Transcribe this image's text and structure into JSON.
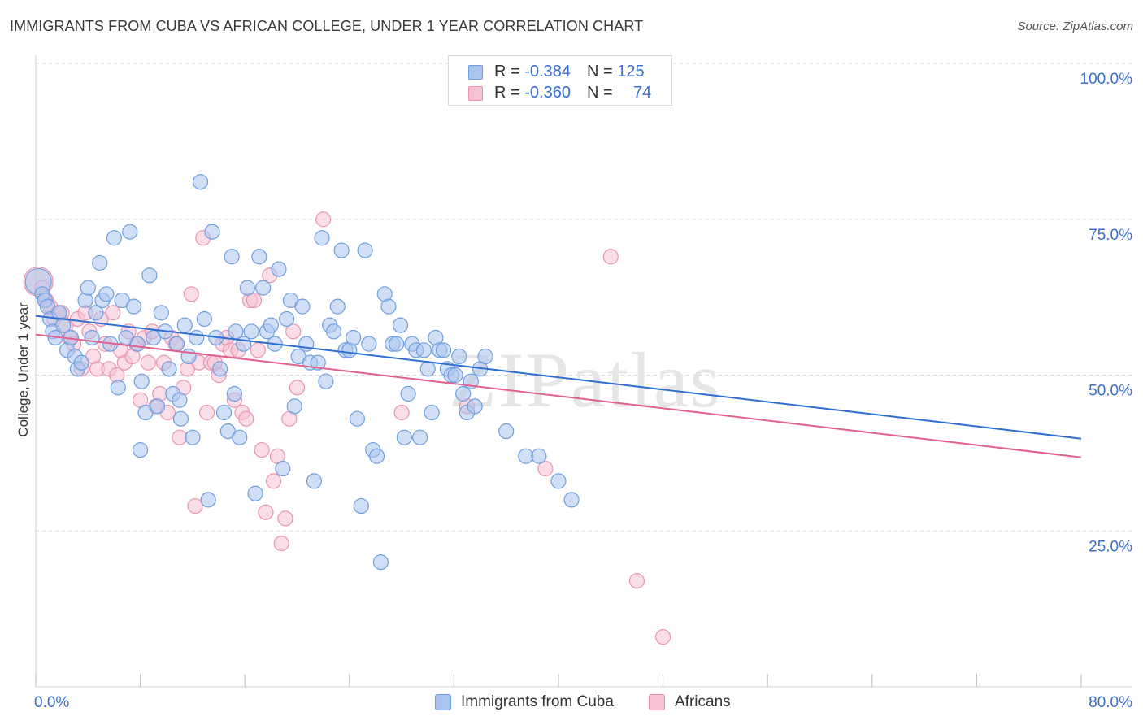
{
  "header": {
    "title": "IMMIGRANTS FROM CUBA VS AFRICAN COLLEGE, UNDER 1 YEAR CORRELATION CHART",
    "source": "Source: ZipAtlas.com"
  },
  "legend_top": {
    "rows": [
      {
        "r_label": "R = ",
        "r_value": "-0.384",
        "n_label": "N = ",
        "n_value": "125"
      },
      {
        "r_label": "R = ",
        "r_value": "-0.360",
        "n_label": "N = ",
        "n_value": "74"
      }
    ]
  },
  "legend_bottom": {
    "items": [
      {
        "label": "Immigrants from Cuba"
      },
      {
        "label": "Africans"
      }
    ]
  },
  "colors": {
    "blue_fill": "#a9c4ee",
    "blue_stroke": "#6f9ee0",
    "blue_line": "#2f6fd0",
    "pink_fill": "#f6c1d2",
    "pink_stroke": "#ea94b1",
    "pink_line": "#e2608d",
    "grid": "#d6d6d6",
    "tick_text": "#3a6fce",
    "watermark": "#e4e4e4"
  },
  "chart_data": {
    "type": "scatter",
    "title": "IMMIGRANTS FROM CUBA VS AFRICAN COLLEGE, UNDER 1 YEAR CORRELATION CHART",
    "xlabel": "",
    "ylabel": "College, Under 1 year",
    "xlim": [
      0,
      80
    ],
    "ylim": [
      0,
      100
    ],
    "x_tick_labels": [
      "0.0%",
      "80.0%"
    ],
    "y_tick_labels": [
      "25.0%",
      "50.0%",
      "75.0%",
      "100.0%"
    ],
    "y_ticks": [
      25,
      50,
      75,
      100
    ],
    "grid": "horizontal dashed",
    "legend_position": "top-center",
    "watermark": "ZIPatlas",
    "series": [
      {
        "name": "Immigrants from Cuba",
        "color": "blue",
        "trend": {
          "x": [
            0,
            80
          ],
          "y": [
            59.5,
            39.8
          ]
        },
        "points": [
          [
            0.2,
            65
          ],
          [
            0.5,
            63
          ],
          [
            0.7,
            62
          ],
          [
            0.9,
            61
          ],
          [
            1.1,
            59
          ],
          [
            1.3,
            57
          ],
          [
            1.5,
            56
          ],
          [
            1.8,
            60
          ],
          [
            2.1,
            58
          ],
          [
            2.4,
            54
          ],
          [
            2.7,
            56
          ],
          [
            3.0,
            53
          ],
          [
            3.2,
            51
          ],
          [
            3.5,
            52
          ],
          [
            3.8,
            62
          ],
          [
            4.0,
            64
          ],
          [
            4.3,
            56
          ],
          [
            4.6,
            60
          ],
          [
            4.9,
            68
          ],
          [
            5.1,
            62
          ],
          [
            5.4,
            63
          ],
          [
            5.7,
            55
          ],
          [
            6.0,
            72
          ],
          [
            6.3,
            48
          ],
          [
            6.6,
            62
          ],
          [
            6.9,
            56
          ],
          [
            7.2,
            73
          ],
          [
            7.5,
            61
          ],
          [
            7.8,
            55
          ],
          [
            8.1,
            49
          ],
          [
            8.4,
            44
          ],
          [
            8.7,
            66
          ],
          [
            9.0,
            56
          ],
          [
            9.3,
            45
          ],
          [
            9.6,
            60
          ],
          [
            9.9,
            57
          ],
          [
            10.2,
            51
          ],
          [
            10.5,
            47
          ],
          [
            10.8,
            55
          ],
          [
            11.1,
            43
          ],
          [
            11.4,
            58
          ],
          [
            11.7,
            53
          ],
          [
            12.0,
            40
          ],
          [
            12.3,
            56
          ],
          [
            12.6,
            81
          ],
          [
            12.9,
            59
          ],
          [
            13.2,
            30
          ],
          [
            13.5,
            73
          ],
          [
            13.8,
            56
          ],
          [
            14.1,
            51
          ],
          [
            14.4,
            44
          ],
          [
            14.7,
            41
          ],
          [
            15.0,
            69
          ],
          [
            15.3,
            57
          ],
          [
            15.6,
            40
          ],
          [
            15.9,
            55
          ],
          [
            16.2,
            64
          ],
          [
            16.5,
            57
          ],
          [
            16.8,
            31
          ],
          [
            17.1,
            69
          ],
          [
            17.4,
            64
          ],
          [
            17.7,
            57
          ],
          [
            18.0,
            58
          ],
          [
            18.3,
            55
          ],
          [
            18.6,
            67
          ],
          [
            18.9,
            35
          ],
          [
            19.2,
            59
          ],
          [
            19.5,
            62
          ],
          [
            19.8,
            45
          ],
          [
            20.1,
            53
          ],
          [
            20.4,
            61
          ],
          [
            20.7,
            55
          ],
          [
            21.0,
            52
          ],
          [
            21.3,
            33
          ],
          [
            21.6,
            52
          ],
          [
            21.9,
            72
          ],
          [
            22.2,
            49
          ],
          [
            22.5,
            58
          ],
          [
            22.8,
            57
          ],
          [
            23.1,
            61
          ],
          [
            23.4,
            70
          ],
          [
            23.7,
            54
          ],
          [
            24.0,
            54
          ],
          [
            24.3,
            56
          ],
          [
            24.6,
            43
          ],
          [
            24.9,
            29
          ],
          [
            25.2,
            70
          ],
          [
            25.5,
            55
          ],
          [
            25.8,
            38
          ],
          [
            26.1,
            37
          ],
          [
            26.4,
            20
          ],
          [
            26.7,
            63
          ],
          [
            27.0,
            61
          ],
          [
            27.3,
            55
          ],
          [
            27.6,
            55
          ],
          [
            27.9,
            58
          ],
          [
            28.2,
            40
          ],
          [
            28.5,
            47
          ],
          [
            28.8,
            55
          ],
          [
            29.1,
            54
          ],
          [
            29.4,
            40
          ],
          [
            29.7,
            54
          ],
          [
            30.0,
            51
          ],
          [
            30.3,
            44
          ],
          [
            30.6,
            56
          ],
          [
            30.9,
            54
          ],
          [
            31.2,
            54
          ],
          [
            31.5,
            51
          ],
          [
            31.8,
            50
          ],
          [
            32.1,
            50
          ],
          [
            32.4,
            53
          ],
          [
            32.7,
            47
          ],
          [
            33.0,
            44
          ],
          [
            33.3,
            49
          ],
          [
            33.6,
            45
          ],
          [
            34.0,
            51
          ],
          [
            34.4,
            53
          ],
          [
            36.0,
            41
          ],
          [
            37.5,
            37
          ],
          [
            38.5,
            37
          ],
          [
            40.0,
            33
          ],
          [
            41.0,
            30
          ],
          [
            15.2,
            47
          ],
          [
            11.0,
            46
          ],
          [
            8.0,
            38
          ]
        ]
      },
      {
        "name": "Africans",
        "color": "pink",
        "trend": {
          "x": [
            0,
            80
          ],
          "y": [
            56.5,
            36.8
          ]
        },
        "points": [
          [
            0.2,
            65
          ],
          [
            0.5,
            64
          ],
          [
            0.8,
            62
          ],
          [
            1.1,
            61
          ],
          [
            1.4,
            59
          ],
          [
            1.7,
            60
          ],
          [
            2.0,
            60
          ],
          [
            2.3,
            58
          ],
          [
            2.6,
            56
          ],
          [
            2.9,
            55
          ],
          [
            3.2,
            59
          ],
          [
            3.5,
            51
          ],
          [
            3.8,
            60
          ],
          [
            4.1,
            57
          ],
          [
            4.4,
            53
          ],
          [
            4.7,
            51
          ],
          [
            5.0,
            59
          ],
          [
            5.3,
            55
          ],
          [
            5.6,
            51
          ],
          [
            5.9,
            60
          ],
          [
            6.2,
            50
          ],
          [
            6.5,
            54
          ],
          [
            6.8,
            52
          ],
          [
            7.1,
            57
          ],
          [
            7.4,
            53
          ],
          [
            7.7,
            55
          ],
          [
            8.0,
            46
          ],
          [
            8.3,
            56
          ],
          [
            8.6,
            52
          ],
          [
            8.9,
            57
          ],
          [
            9.2,
            45
          ],
          [
            9.5,
            47
          ],
          [
            9.8,
            52
          ],
          [
            10.1,
            44
          ],
          [
            10.4,
            56
          ],
          [
            10.7,
            55
          ],
          [
            11.0,
            40
          ],
          [
            11.3,
            48
          ],
          [
            11.6,
            51
          ],
          [
            11.9,
            63
          ],
          [
            12.2,
            29
          ],
          [
            12.5,
            52
          ],
          [
            12.8,
            72
          ],
          [
            13.1,
            44
          ],
          [
            13.4,
            52
          ],
          [
            13.7,
            52
          ],
          [
            14.0,
            50
          ],
          [
            14.3,
            55
          ],
          [
            14.6,
            56
          ],
          [
            14.9,
            54
          ],
          [
            15.2,
            46
          ],
          [
            15.5,
            54
          ],
          [
            15.8,
            44
          ],
          [
            16.1,
            43
          ],
          [
            16.4,
            62
          ],
          [
            16.7,
            62
          ],
          [
            17.0,
            54
          ],
          [
            17.3,
            38
          ],
          [
            17.6,
            28
          ],
          [
            17.9,
            66
          ],
          [
            18.2,
            33
          ],
          [
            18.5,
            37
          ],
          [
            18.8,
            23
          ],
          [
            19.1,
            27
          ],
          [
            19.4,
            43
          ],
          [
            19.7,
            57
          ],
          [
            20.0,
            48
          ],
          [
            22.0,
            75
          ],
          [
            28.0,
            44
          ],
          [
            33.0,
            45
          ],
          [
            39.0,
            35
          ],
          [
            44.0,
            69
          ],
          [
            46.0,
            17
          ],
          [
            48.0,
            8
          ]
        ]
      }
    ]
  }
}
